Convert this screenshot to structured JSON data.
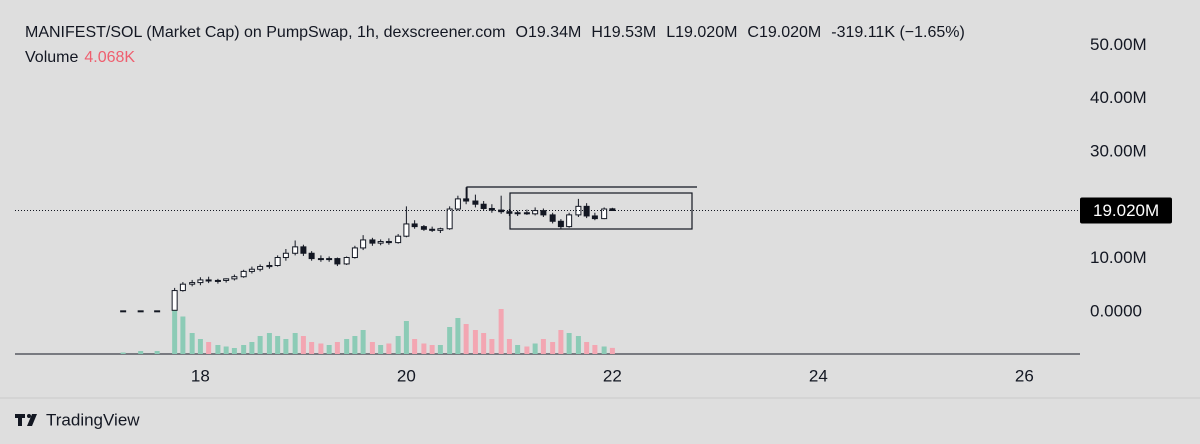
{
  "chart_data": {
    "type": "candlestick",
    "title": "MANIFEST/SOL (Market Cap) on PumpSwap, 1h, dexscreener.com",
    "ohlc_legend": [
      {
        "key": "O",
        "value": "19.34M"
      },
      {
        "key": "H",
        "value": "19.53M"
      },
      {
        "key": "L",
        "value": "19.020M"
      },
      {
        "key": "C",
        "value": "19.020M"
      }
    ],
    "change": "-319.11K (−1.65%)",
    "volume_label": "Volume",
    "volume_value": "4.068K",
    "watermark": "TradingView",
    "x": [
      17.25,
      17.42,
      17.58,
      17.75,
      17.83,
      17.92,
      18.0,
      18.08,
      18.17,
      18.25,
      18.33,
      18.42,
      18.5,
      18.58,
      18.67,
      18.75,
      18.83,
      18.92,
      19.0,
      19.08,
      19.17,
      19.25,
      19.33,
      19.42,
      19.5,
      19.58,
      19.67,
      19.75,
      19.83,
      19.92,
      20.0,
      20.08,
      20.17,
      20.25,
      20.33,
      20.42,
      20.5,
      20.58,
      20.67,
      20.75,
      20.83,
      20.92,
      21.0,
      21.08,
      21.17,
      21.25,
      21.33,
      21.42,
      21.5,
      21.58,
      21.67,
      21.75,
      21.83,
      21.92,
      22.0
    ],
    "open": [
      0.2,
      0.2,
      0.2,
      0.3,
      4.0,
      5.2,
      5.5,
      6.0,
      5.8,
      5.9,
      6.2,
      6.6,
      7.6,
      8.0,
      8.5,
      8.7,
      10.2,
      11.0,
      12.2,
      11.0,
      10.0,
      9.9,
      10.0,
      9.0,
      10.2,
      12.0,
      13.5,
      12.9,
      13.2,
      13.0,
      14.2,
      16.5,
      16.0,
      15.5,
      15.3,
      15.6,
      19.3,
      21.2,
      20.8,
      20.2,
      19.4,
      19.1,
      18.8,
      18.5,
      18.6,
      18.4,
      19.0,
      18.2,
      17.0,
      16.0,
      18.2,
      19.8,
      18.0,
      17.5,
      19.34
    ],
    "high": [
      0.2,
      0.2,
      0.2,
      4.5,
      5.6,
      6.0,
      6.5,
      6.6,
      6.2,
      6.3,
      7.0,
      7.9,
      8.5,
      8.9,
      9.4,
      10.6,
      11.8,
      13.4,
      12.6,
      11.4,
      10.6,
      10.4,
      10.2,
      10.4,
      12.4,
      14.4,
      13.9,
      13.6,
      13.8,
      14.6,
      19.8,
      17.2,
      16.3,
      16.0,
      15.8,
      19.8,
      21.8,
      23.4,
      22.0,
      20.8,
      20.2,
      21.8,
      19.3,
      19.0,
      19.2,
      19.6,
      19.4,
      18.6,
      17.4,
      18.6,
      21.2,
      20.4,
      18.6,
      19.6,
      19.53
    ],
    "low": [
      0.2,
      0.2,
      0.2,
      0.3,
      3.8,
      4.8,
      5.0,
      5.4,
      5.3,
      5.5,
      5.9,
      6.4,
      7.2,
      7.6,
      8.1,
      8.5,
      9.6,
      10.6,
      10.5,
      9.6,
      9.4,
      9.4,
      8.6,
      8.8,
      10.0,
      11.6,
      12.4,
      12.5,
      12.6,
      12.8,
      14.0,
      15.6,
      15.2,
      15.0,
      14.8,
      15.4,
      19.0,
      20.2,
      19.6,
      19.0,
      18.6,
      18.4,
      18.0,
      18.0,
      18.2,
      18.1,
      17.8,
      16.6,
      15.6,
      15.8,
      17.8,
      17.6,
      17.2,
      17.4,
      19.02
    ],
    "close": [
      0.2,
      0.2,
      0.2,
      4.0,
      5.2,
      5.5,
      6.0,
      5.8,
      5.9,
      6.2,
      6.6,
      7.6,
      8.0,
      8.5,
      8.7,
      10.2,
      11.0,
      12.2,
      11.0,
      10.0,
      9.9,
      10.0,
      9.0,
      10.2,
      12.0,
      13.5,
      12.9,
      13.2,
      13.0,
      14.2,
      16.5,
      16.0,
      15.5,
      15.3,
      15.6,
      19.3,
      21.2,
      20.8,
      20.2,
      19.4,
      19.1,
      18.8,
      18.5,
      18.6,
      18.4,
      19.0,
      18.2,
      17.0,
      16.0,
      18.2,
      19.8,
      18.0,
      17.5,
      19.3,
      19.02
    ],
    "volume": [
      1,
      2,
      2,
      30,
      25,
      14,
      10,
      8,
      6,
      5,
      4,
      6,
      8,
      12,
      14,
      12,
      10,
      14,
      12,
      8,
      7,
      6,
      8,
      10,
      12,
      16,
      8,
      6,
      7,
      12,
      22,
      10,
      7,
      6,
      6,
      18,
      24,
      20,
      16,
      14,
      10,
      30,
      10,
      6,
      5,
      7,
      10,
      8,
      16,
      14,
      12,
      8,
      6,
      5,
      4.068
    ],
    "up_color": "#ffffff",
    "down_color": "#131722",
    "volume_up_color": "#8ccbb6",
    "volume_down_color": "#f3a6b2",
    "xlim": [
      16.2,
      26.54
    ],
    "xticks": [
      18,
      20,
      22,
      24,
      26
    ],
    "ylim": [
      -7.9,
      55.7
    ],
    "yticks": [
      {
        "value": 0,
        "label": "0.0000"
      },
      {
        "value": 10,
        "label": "10.00M"
      },
      {
        "value": 30,
        "label": "30.00M"
      },
      {
        "value": 40,
        "label": "40.00M"
      },
      {
        "value": 50,
        "label": "50.00M"
      }
    ],
    "volume_ylim": [
      0,
      60
    ],
    "last_price": 19.02,
    "last_price_label": "19.020M"
  }
}
